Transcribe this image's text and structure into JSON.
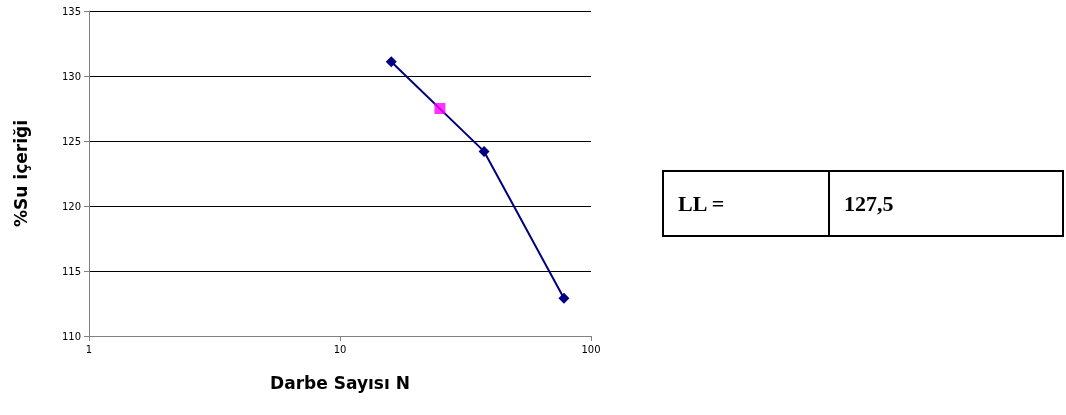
{
  "chart_data": [
    {
      "type": "line",
      "xlabel": "Darbe Sayısı N",
      "ylabel": "%Su içeriği",
      "log": "x",
      "grid": "y",
      "xlim": [
        1,
        100
      ],
      "xticks": [
        1,
        10,
        100
      ],
      "ylim": [
        110,
        135
      ],
      "yticks": [
        110,
        115,
        120,
        125,
        130,
        135
      ],
      "series": [
        {
          "type": "line",
          "color": "#000080",
          "marker": "diamond",
          "line_style": "solid",
          "x": [
            16,
            37.5,
            78
          ],
          "values": [
            131.1,
            124.2,
            112.9
          ]
        },
        {
          "type": "scatter",
          "color": "#ff00ff",
          "marker": "square",
          "x": [
            25
          ],
          "values": [
            127.5
          ]
        }
      ]
    },
    {
      "type": "other",
      "annotations": [
        "LL =",
        "127,5"
      ]
    }
  ]
}
